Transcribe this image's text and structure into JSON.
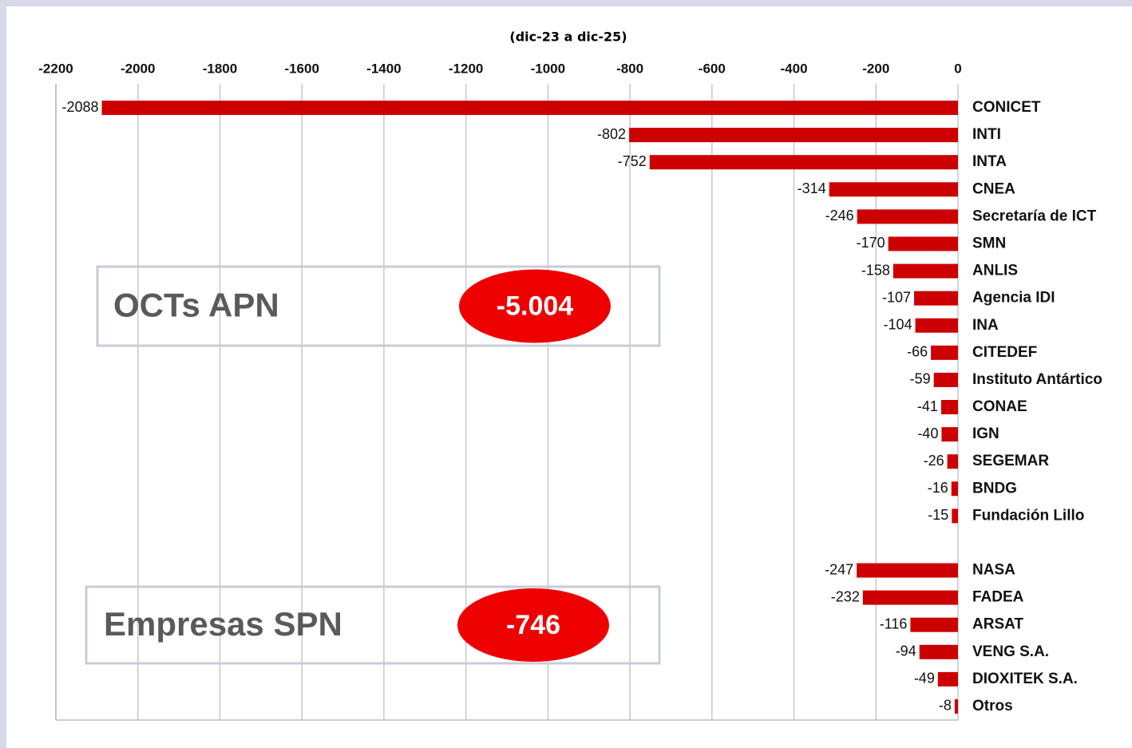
{
  "chart_data": {
    "type": "hbar",
    "title": "(dic-23 a dic-25)",
    "categories": [
      "CONICET",
      "INTI",
      "INTA",
      "CNEA",
      "Secretaría de ICT",
      "SMN",
      "ANLIS",
      "Agencia IDI",
      "INA",
      "CITEDEF",
      "Instituto Antártico",
      "CONAE",
      "IGN",
      "SEGEMAR",
      "BNDG",
      "Fundación Lillo",
      null,
      "NASA",
      "FADEA",
      "ARSAT",
      "VENG S.A.",
      "DIOXITEK S.A.",
      "Otros"
    ],
    "values": [
      -2088,
      -802,
      -752,
      -314,
      -246,
      -170,
      -158,
      -107,
      -104,
      -66,
      -59,
      -41,
      -40,
      -26,
      -16,
      -15,
      null,
      -247,
      -232,
      -116,
      -94,
      -49,
      -8
    ],
    "color": "#cc0000",
    "xlim": [
      -2200,
      0
    ],
    "xticks": [
      -2200,
      -2000,
      -1800,
      -1600,
      -1400,
      -1200,
      -1000,
      -800,
      -600,
      -400,
      -200,
      0
    ],
    "grid": true,
    "annotations": [
      {
        "text": "OCTs APN",
        "badge": "-5.004"
      },
      {
        "text": "Empresas SPN",
        "badge": "-746"
      }
    ]
  }
}
